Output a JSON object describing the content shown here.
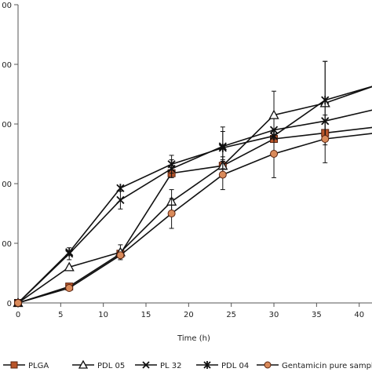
{
  "chart_data": {
    "type": "line",
    "xlabel": "Time (h)",
    "ylabel": "",
    "x": [
      0,
      6,
      12,
      18,
      24,
      30,
      36,
      42
    ],
    "xticks": [
      0,
      5,
      10,
      15,
      20,
      25,
      30,
      35,
      40
    ],
    "xlim": [
      0,
      41.5
    ],
    "ylim": [
      0,
      100
    ],
    "yticks": [
      0,
      20,
      40,
      60,
      80,
      100
    ],
    "ytick_labels": [
      "0",
      "00",
      "00",
      "00",
      "00",
      "00"
    ],
    "grid": false,
    "legend_position": "bottom",
    "series": [
      {
        "name": "PLGA",
        "marker": "square",
        "color": "#8a3a1a",
        "values": [
          0,
          5.5,
          16.5,
          43.5,
          46,
          55,
          57,
          59
        ],
        "errors": [
          0,
          0,
          0,
          0,
          0,
          0,
          0,
          0
        ]
      },
      {
        "name": "PDL 05",
        "marker": "triangle",
        "color": "#111111",
        "values": [
          0,
          12,
          17,
          34,
          46,
          63,
          67,
          73
        ],
        "errors": [
          0,
          0,
          2.5,
          4,
          3,
          8,
          14,
          0
        ]
      },
      {
        "name": "PL 32",
        "marker": "x",
        "color": "#111111",
        "values": [
          0,
          16.5,
          34.5,
          45,
          52.5,
          58,
          61,
          65
        ],
        "errors": [
          0,
          2,
          3,
          3,
          5,
          0,
          0,
          0
        ]
      },
      {
        "name": "PDL 04",
        "marker": "star",
        "color": "#111111",
        "values": [
          0,
          17,
          38.5,
          46.5,
          52,
          56,
          68,
          73
        ],
        "errors": [
          0,
          0,
          0,
          3,
          7,
          0,
          13,
          0
        ]
      },
      {
        "name": "Gentamicin pure sample",
        "marker": "circle",
        "color": "#c07040",
        "values": [
          0,
          5,
          16,
          30,
          43,
          50,
          55,
          57
        ],
        "errors": [
          0,
          0,
          0,
          5,
          5,
          8,
          8,
          0
        ]
      }
    ]
  }
}
